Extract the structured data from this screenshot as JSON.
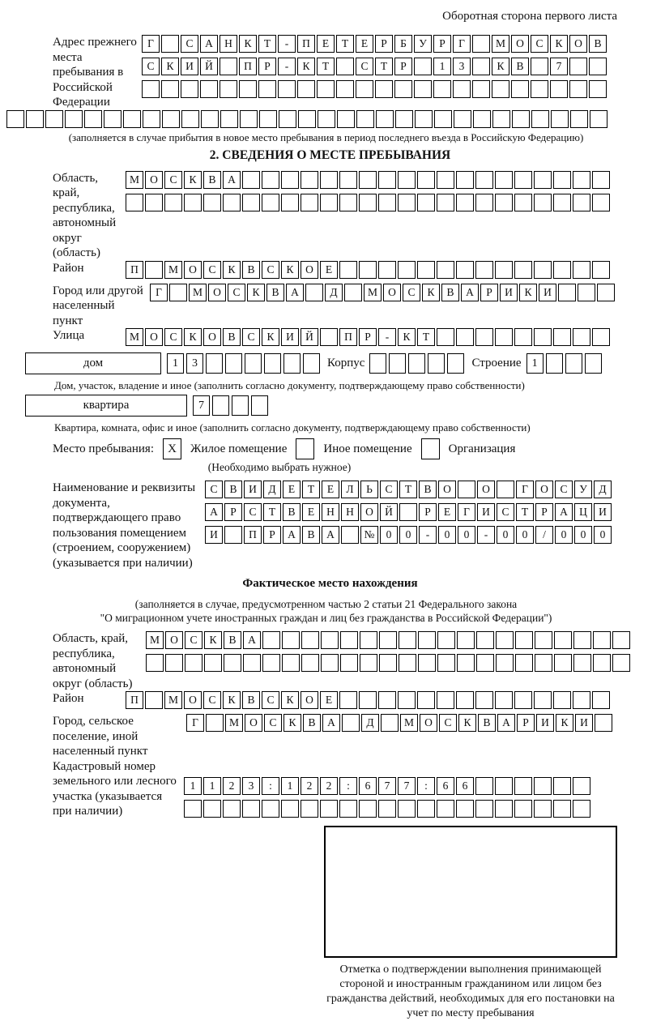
{
  "colors": {
    "ink": "#111111",
    "box_border": "#000000"
  },
  "page": {
    "header_note": "Оборотная сторона первого листа"
  },
  "prev_address": {
    "label": "Адрес прежнего места пребывания в Российской Федерации",
    "rows": [
      {
        "cells": "Г САНКТ-ПЕТЕРБУРГ МОСКОВ",
        "len": 24
      },
      {
        "cells": "СКИЙ ПР-КТ СТР 13 КВ 7",
        "len": 24
      },
      {
        "cells": "",
        "len": 24
      },
      {
        "cells": "",
        "len": 31
      }
    ],
    "note": "(заполняется в случае прибытия в новое место пребывания в период последнего въезда в Российскую Федерацию)"
  },
  "section2": {
    "title": "2. СВЕДЕНИЯ О МЕСТЕ ПРЕБЫВАНИЯ",
    "region": {
      "label": "Область, край, республика, автономный округ (область)",
      "rows": [
        {
          "cells": "МОСКВА",
          "len": 25
        },
        {
          "cells": "",
          "len": 25
        }
      ]
    },
    "district": {
      "label": "Район",
      "row": {
        "cells": "П МОСКВСКОЕ",
        "len": 25
      }
    },
    "city": {
      "label": "Город или другой населенный пункт",
      "row": {
        "cells": "Г МОСКВА Д МОСКВАРИКИ",
        "len": 24
      }
    },
    "street": {
      "label": "Улица",
      "row": {
        "cells": "МОСКОВСКИЙ ПР-КТ",
        "len": 25
      }
    },
    "house": {
      "box_label": "дом",
      "row": {
        "cells": "13",
        "len": 8
      },
      "korpus_label": "Корпус",
      "korpus_row": {
        "cells": "",
        "len": 5
      },
      "stroenie_label": "Строение",
      "stroenie_row": {
        "cells": "1",
        "len": 4
      }
    },
    "house_note": "Дом, участок, владение и иное (заполнить согласно документу, подтверждающему право собственности)",
    "apartment": {
      "box_label": "квартира",
      "row": {
        "cells": "7",
        "len": 4
      }
    },
    "apartment_note": "Квартира, комната, офис и иное (заполнить согласно документу, подтверждающему право собственности)",
    "stay_type": {
      "label": "Место пребывания:",
      "options": [
        {
          "label": "Жилое помещение",
          "mark": "X"
        },
        {
          "label": "Иное помещение",
          "mark": ""
        },
        {
          "label": "Организация",
          "mark": ""
        }
      ],
      "note": "(Необходимо выбрать нужное)"
    },
    "document": {
      "label": "Наименование и реквизиты документа, подтверждающего право пользования помещением (строением, сооружением) (указывается при наличии)",
      "rows": [
        {
          "cells": "СВИДЕТЕЛЬСТВО О ГОСУД",
          "len": 21
        },
        {
          "cells": "АРСТВЕННОЙ РЕГИСТРАЦИ",
          "len": 21
        },
        {
          "cells": "И ПРАВА №00-00-00/000",
          "len": 21
        }
      ]
    }
  },
  "actual_location": {
    "title": "Фактическое место нахождения",
    "note_lines": [
      "(заполняется в случае, предусмотренном частью 2 статьи 21 Федерального закона",
      "\"О миграционном учете иностранных граждан и лиц без гражданства в Российской Федерации\")"
    ],
    "region": {
      "label": "Область, край, республика, автономный округ (область)",
      "rows": [
        {
          "cells": "МОСКВА",
          "len": 25
        },
        {
          "cells": "",
          "len": 25
        }
      ]
    },
    "district": {
      "label": "Район",
      "row": {
        "cells": "П МОСКВСКОЕ",
        "len": 25
      }
    },
    "city": {
      "label": "Город, сельское поселение, иной населенный пункт",
      "row": {
        "cells": "Г МОСКВА Д МОСКВАРИКИ",
        "len": 22
      }
    },
    "cadastre": {
      "label": "Кадастровый номер земельного или лесного участка (указывается при наличии)",
      "rows": [
        {
          "cells": "1123:122:677:66",
          "len": 21
        },
        {
          "cells": "",
          "len": 21
        }
      ]
    },
    "stamp_caption": "Отметка о подтверждении выполнения принимающей стороной и иностранным гражданином или лицом без гражданства действий, необходимых для его постановки на учет по месту пребывания"
  }
}
